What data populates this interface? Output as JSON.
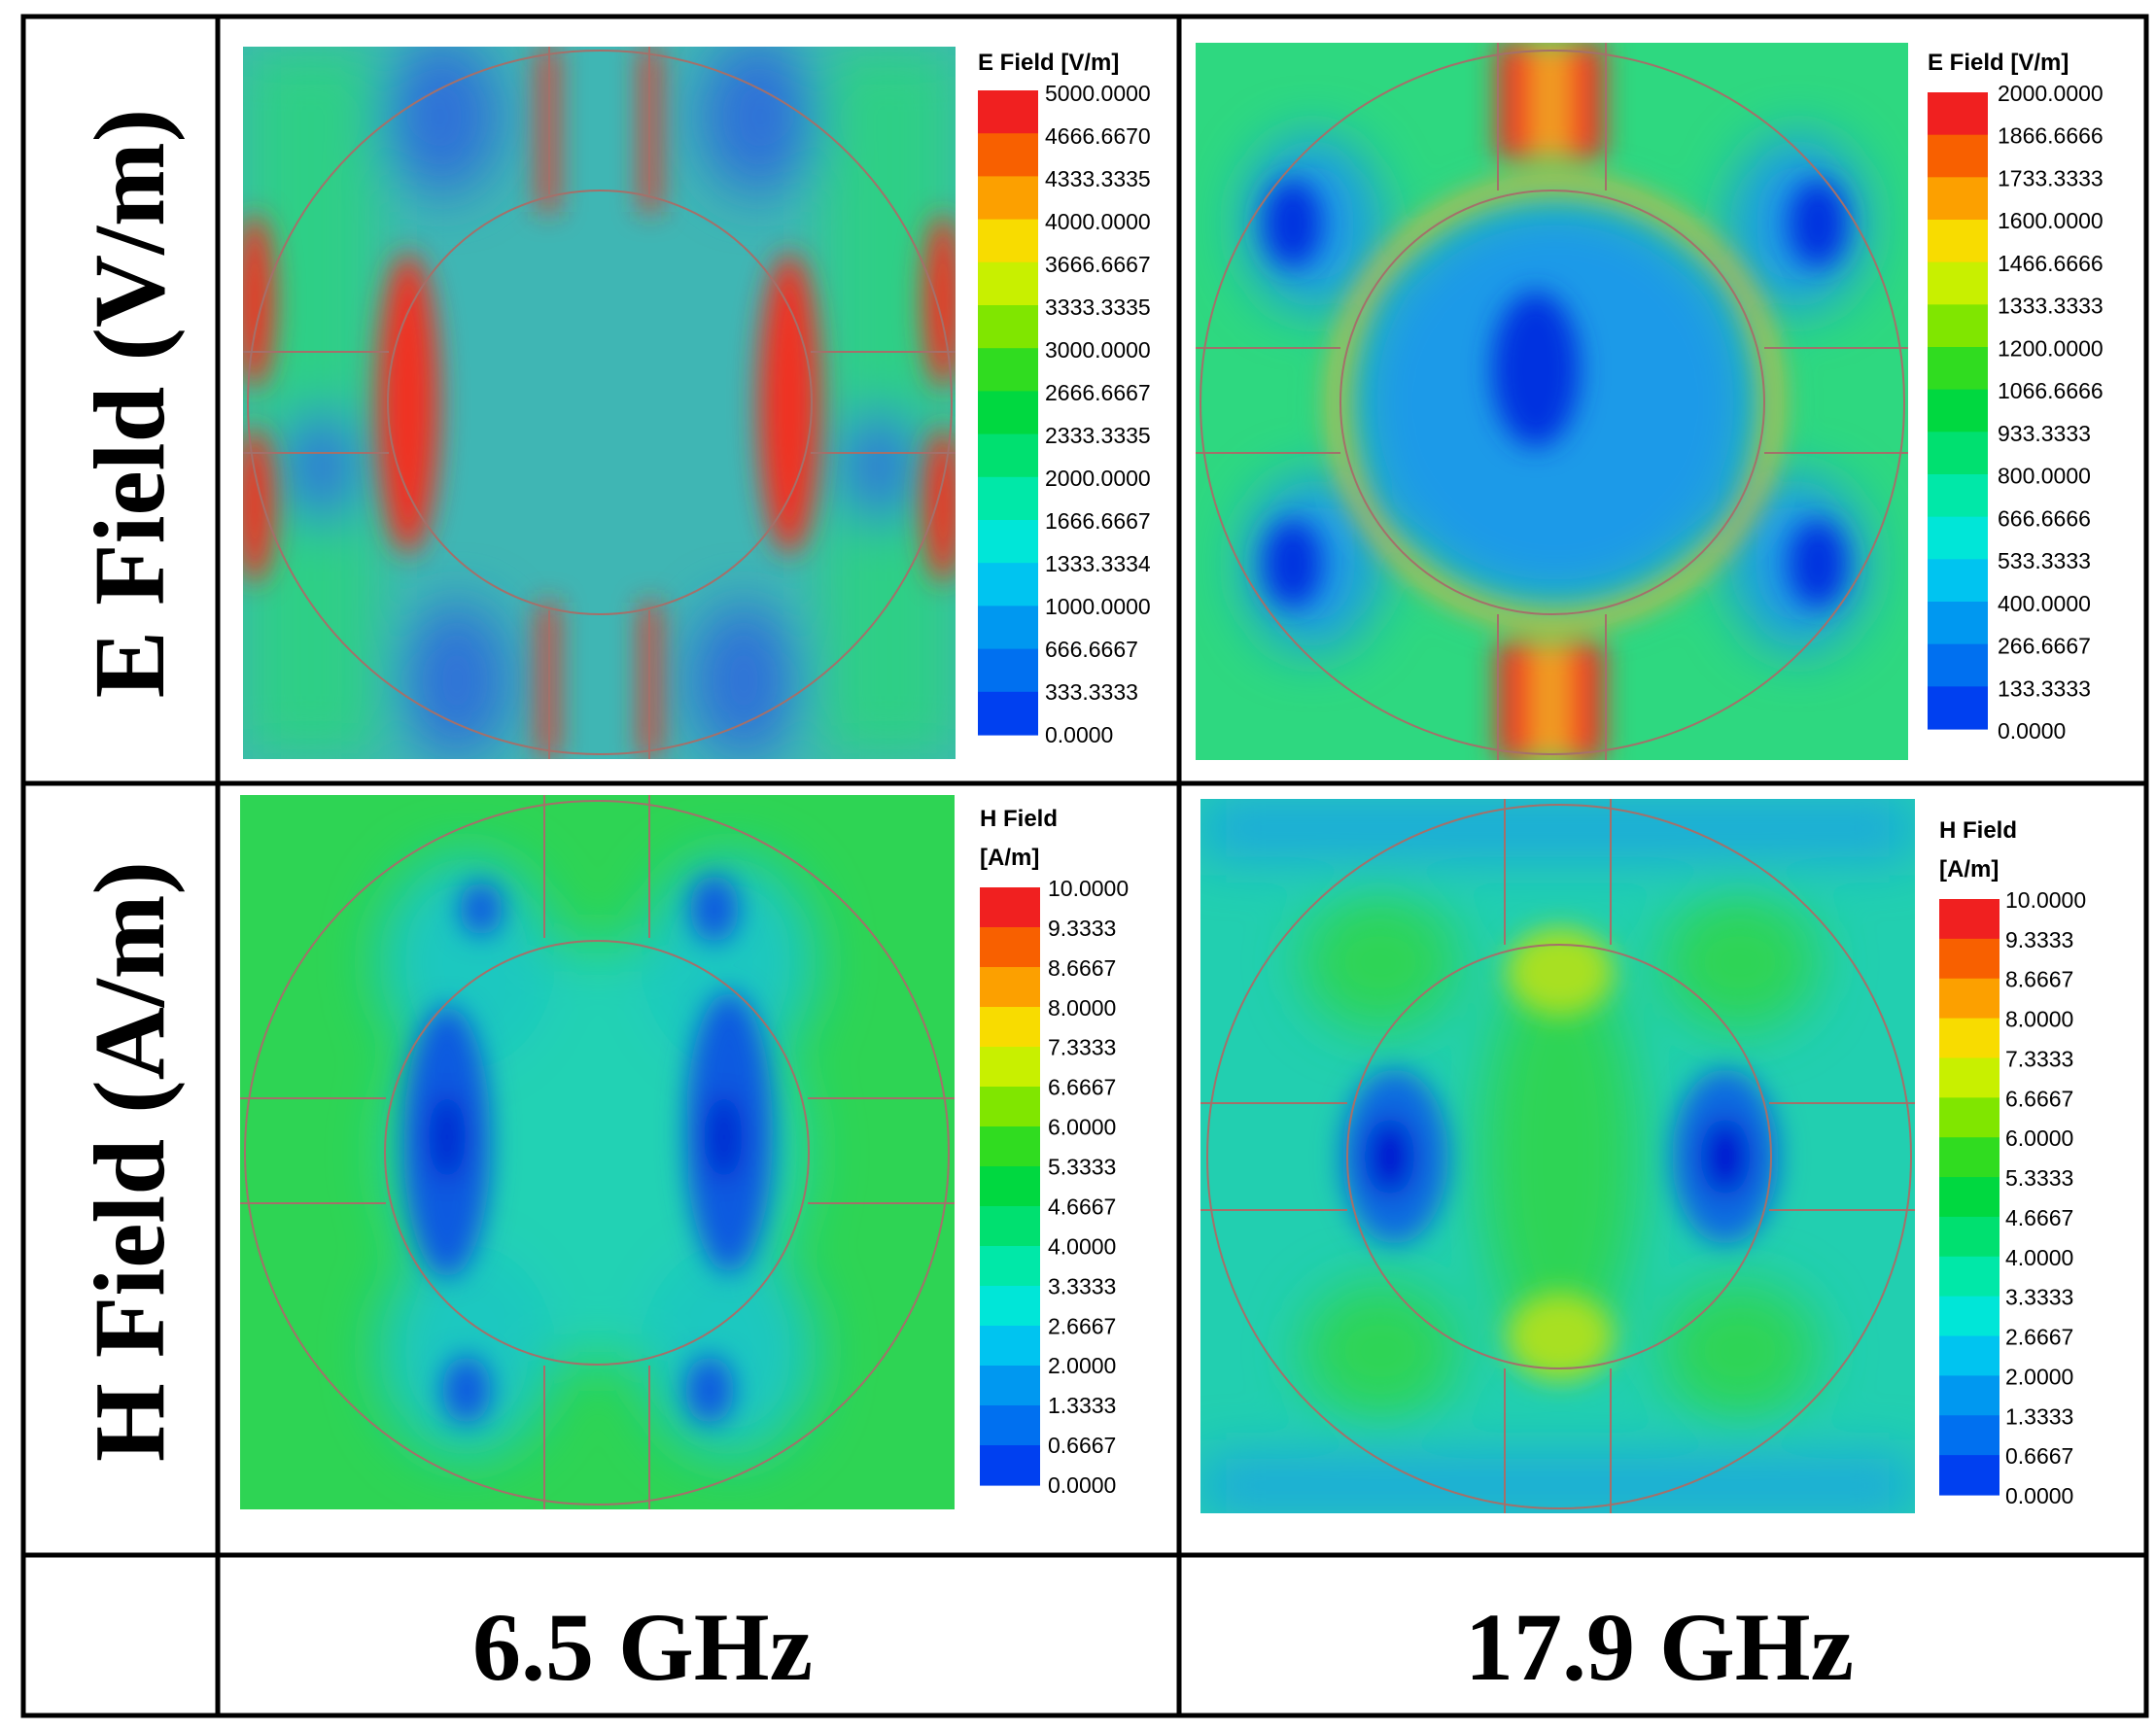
{
  "figure": {
    "row_labels": [
      "E Field (V/m)",
      "H Field (A/m)"
    ],
    "frequencies": [
      "6.5 GHz",
      "17.9 GHz"
    ]
  },
  "colormap": [
    "#0000e0",
    "#0040f0",
    "#0070f0",
    "#0098f0",
    "#00c4f0",
    "#00e6d8",
    "#00e8a8",
    "#00e070",
    "#00d840",
    "#30dc20",
    "#80e600",
    "#c8f000",
    "#f8dc00",
    "#fca000",
    "#f86000",
    "#f02020"
  ],
  "panels": [
    {
      "id": "e-6-5",
      "colorbar": {
        "title": [
          "E Field [V/m]"
        ],
        "ticks": [
          "5000.0000",
          "4666.6670",
          "4333.3335",
          "4000.0000",
          "3666.6667",
          "3333.3335",
          "3000.0000",
          "2666.6667",
          "2333.3335",
          "2000.0000",
          "1666.6667",
          "1333.3334",
          "1000.0000",
          "666.6667",
          "333.3333",
          "0.0000"
        ]
      }
    },
    {
      "id": "e-17-9",
      "colorbar": {
        "title": [
          "E Field [V/m]"
        ],
        "ticks": [
          "2000.0000",
          "1866.6666",
          "1733.3333",
          "1600.0000",
          "1466.6666",
          "1333.3333",
          "1200.0000",
          "1066.6666",
          "933.3333",
          "800.0000",
          "666.6666",
          "533.3333",
          "400.0000",
          "266.6667",
          "133.3333",
          "0.0000"
        ]
      }
    },
    {
      "id": "h-6-5",
      "colorbar": {
        "title": [
          "H Field",
          "[A/m]"
        ],
        "ticks": [
          "10.0000",
          "9.3333",
          "8.6667",
          "8.0000",
          "7.3333",
          "6.6667",
          "6.0000",
          "5.3333",
          "4.6667",
          "4.0000",
          "3.3333",
          "2.6667",
          "2.0000",
          "1.3333",
          "0.6667",
          "0.0000"
        ]
      }
    },
    {
      "id": "h-17-9",
      "colorbar": {
        "title": [
          "H Field",
          "[A/m]"
        ],
        "ticks": [
          "10.0000",
          "9.3333",
          "8.6667",
          "8.0000",
          "7.3333",
          "6.6667",
          "6.0000",
          "5.3333",
          "4.6667",
          "4.0000",
          "3.3333",
          "2.6667",
          "2.0000",
          "1.3333",
          "0.6667",
          "0.0000"
        ]
      }
    }
  ]
}
